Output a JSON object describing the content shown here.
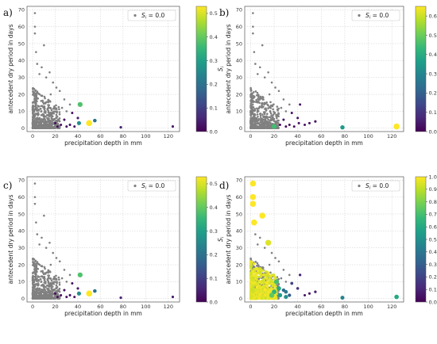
{
  "panel_letters": [
    "a)",
    "b)",
    "c)",
    "d)"
  ],
  "colors": {
    "zero_points": "#808080",
    "viridis": [
      "#440154",
      "#482878",
      "#3e4989",
      "#31688e",
      "#26828e",
      "#1f9e89",
      "#35b779",
      "#6ece58",
      "#b5de2b",
      "#fde725"
    ]
  },
  "chart_data": [
    {
      "type": "scatter",
      "panel": "a)",
      "xlabel": "precipitation depth in mm",
      "ylabel": "antecedent dry period in days",
      "xlim": [
        -5,
        130
      ],
      "ylim": [
        -2,
        72
      ],
      "xticks": [
        "0",
        "20",
        "40",
        "60",
        "80",
        "100",
        "120"
      ],
      "yticks": [
        "0",
        "10",
        "20",
        "30",
        "40",
        "50",
        "60",
        "70"
      ],
      "grid": true,
      "legend": {
        "placement": "top-right",
        "label": "S_i = 0.0",
        "label_main": "S",
        "label_sub": "i",
        "label_rest": " = 0.0"
      },
      "colorbar": {
        "label_main": "S",
        "label_sub": "i",
        "min": 0.0,
        "max": 0.53,
        "ticks": [
          "0.0",
          "0.1",
          "0.2",
          "0.3",
          "0.4",
          "0.5"
        ]
      },
      "nonzero_points": [
        {
          "x": 124,
          "y": 1,
          "s": 0.03
        },
        {
          "x": 78,
          "y": 0.5,
          "s": 0.05
        },
        {
          "x": 55,
          "y": 4.5,
          "s": 0.2
        },
        {
          "x": 50,
          "y": 3,
          "s": 0.53
        },
        {
          "x": 42,
          "y": 14,
          "s": 0.38
        },
        {
          "x": 41,
          "y": 3,
          "s": 0.26
        },
        {
          "x": 40,
          "y": 6,
          "s": 0.04
        },
        {
          "x": 35,
          "y": 9,
          "s": 0.02
        },
        {
          "x": 33,
          "y": 2,
          "s": 0.03
        },
        {
          "x": 30,
          "y": 1,
          "s": 0.02
        },
        {
          "x": 28,
          "y": 5,
          "s": 0.03
        },
        {
          "x": 25,
          "y": 2,
          "s": 0.02
        },
        {
          "x": 22,
          "y": 1,
          "s": 0.02
        },
        {
          "x": 20,
          "y": 3,
          "s": 0.02
        },
        {
          "x": 37,
          "y": 1,
          "s": 0.02
        }
      ]
    },
    {
      "type": "scatter",
      "panel": "b)",
      "xlabel": "precipitation depth in mm",
      "ylabel": "antecedent dry period in days",
      "xlim": [
        -5,
        130
      ],
      "ylim": [
        -2,
        72
      ],
      "xticks": [
        "0",
        "20",
        "40",
        "60",
        "80",
        "100",
        "120"
      ],
      "yticks": [
        "0",
        "10",
        "20",
        "30",
        "40",
        "50",
        "60",
        "70"
      ],
      "grid": true,
      "legend": {
        "placement": "top-right",
        "label": "S_i = 0.0",
        "label_main": "S",
        "label_sub": "i",
        "label_rest": " = 0.0"
      },
      "colorbar": {
        "label_main": "S",
        "label_sub": "i",
        "min": 0.0,
        "max": 0.65,
        "ticks": [
          "0.0",
          "0.1",
          "0.2",
          "0.3",
          "0.4",
          "0.5",
          "0.6"
        ]
      },
      "nonzero_points": [
        {
          "x": 124,
          "y": 1,
          "s": 0.65
        },
        {
          "x": 78,
          "y": 0.5,
          "s": 0.35
        },
        {
          "x": 55,
          "y": 4,
          "s": 0.05
        },
        {
          "x": 20,
          "y": 1,
          "s": 0.45
        },
        {
          "x": 42,
          "y": 14,
          "s": 0.02
        },
        {
          "x": 41,
          "y": 3,
          "s": 0.03
        },
        {
          "x": 40,
          "y": 6,
          "s": 0.03
        },
        {
          "x": 35,
          "y": 9,
          "s": 0.02
        },
        {
          "x": 33,
          "y": 2,
          "s": 0.03
        },
        {
          "x": 30,
          "y": 1,
          "s": 0.02
        },
        {
          "x": 28,
          "y": 5,
          "s": 0.03
        },
        {
          "x": 25,
          "y": 2,
          "s": 0.02
        },
        {
          "x": 46,
          "y": 2,
          "s": 0.02
        },
        {
          "x": 50,
          "y": 3,
          "s": 0.03
        },
        {
          "x": 37,
          "y": 1,
          "s": 0.02
        }
      ]
    },
    {
      "type": "scatter",
      "panel": "c)",
      "xlabel": "precipitation depth in mm",
      "ylabel": "antecedent dry period in days",
      "xlim": [
        -5,
        130
      ],
      "ylim": [
        -2,
        72
      ],
      "xticks": [
        "0",
        "20",
        "40",
        "60",
        "80",
        "100",
        "120"
      ],
      "yticks": [
        "0",
        "10",
        "20",
        "30",
        "40",
        "50",
        "60",
        "70"
      ],
      "grid": true,
      "legend": {
        "placement": "top-right",
        "label": "S_i = 0.0",
        "label_main": "S",
        "label_sub": "i",
        "label_rest": " = 0.0"
      },
      "colorbar": {
        "label_main": "S",
        "label_sub": "i",
        "min": 0.0,
        "max": 0.53,
        "ticks": [
          "0.0",
          "0.1",
          "0.2",
          "0.3",
          "0.4",
          "0.5"
        ]
      },
      "nonzero_points": [
        {
          "x": 124,
          "y": 1,
          "s": 0.03
        },
        {
          "x": 78,
          "y": 0.5,
          "s": 0.05
        },
        {
          "x": 55,
          "y": 4.5,
          "s": 0.2
        },
        {
          "x": 50,
          "y": 3,
          "s": 0.53
        },
        {
          "x": 42,
          "y": 14,
          "s": 0.38
        },
        {
          "x": 41,
          "y": 3,
          "s": 0.26
        },
        {
          "x": 40,
          "y": 6,
          "s": 0.04
        },
        {
          "x": 35,
          "y": 9,
          "s": 0.02
        },
        {
          "x": 33,
          "y": 2,
          "s": 0.03
        },
        {
          "x": 30,
          "y": 1,
          "s": 0.02
        },
        {
          "x": 28,
          "y": 5,
          "s": 0.03
        },
        {
          "x": 25,
          "y": 2,
          "s": 0.02
        },
        {
          "x": 22,
          "y": 1,
          "s": 0.02
        },
        {
          "x": 20,
          "y": 3,
          "s": 0.02
        },
        {
          "x": 37,
          "y": 1,
          "s": 0.02
        }
      ]
    },
    {
      "type": "scatter",
      "panel": "d)",
      "xlabel": "precipitation depth in mm",
      "ylabel": "antecedent dry period in days",
      "xlim": [
        -5,
        130
      ],
      "ylim": [
        -2,
        72
      ],
      "xticks": [
        "0",
        "20",
        "40",
        "60",
        "80",
        "100",
        "120"
      ],
      "yticks": [
        "0",
        "10",
        "20",
        "30",
        "40",
        "50",
        "60",
        "70"
      ],
      "grid": true,
      "legend": {
        "placement": "top-right",
        "label": "S_i = 0.0",
        "label_main": "S",
        "label_sub": "i",
        "label_rest": " = 0.0"
      },
      "colorbar": {
        "label_main": "S",
        "label_sub": "i",
        "min": 0.0,
        "max": 1.0,
        "ticks": [
          "0.0",
          "0.1",
          "0.2",
          "0.3",
          "0.4",
          "0.5",
          "0.6",
          "0.7",
          "0.8",
          "0.9",
          "1.0"
        ]
      },
      "nonzero_points": [
        {
          "x": 124,
          "y": 1,
          "s": 0.6
        },
        {
          "x": 78,
          "y": 0.5,
          "s": 0.45
        },
        {
          "x": 55,
          "y": 4,
          "s": 0.1
        },
        {
          "x": 42,
          "y": 14,
          "s": 0.1
        },
        {
          "x": 40,
          "y": 6,
          "s": 0.15
        },
        {
          "x": 35,
          "y": 9,
          "s": 0.2
        },
        {
          "x": 33,
          "y": 2,
          "s": 0.3
        },
        {
          "x": 30,
          "y": 1,
          "s": 0.5
        },
        {
          "x": 28,
          "y": 5,
          "s": 0.35
        },
        {
          "x": 25,
          "y": 2,
          "s": 0.55
        },
        {
          "x": 46,
          "y": 2,
          "s": 0.05
        },
        {
          "x": 50,
          "y": 3,
          "s": 0.05
        },
        {
          "x": 2,
          "y": 68,
          "s": 1.0
        },
        {
          "x": 2,
          "y": 60,
          "s": 1.0
        },
        {
          "x": 2,
          "y": 56,
          "s": 1.0
        },
        {
          "x": 10,
          "y": 49,
          "s": 1.0
        },
        {
          "x": 3,
          "y": 45,
          "s": 1.0
        },
        {
          "x": 15,
          "y": 33,
          "s": 0.95
        },
        {
          "x": 22,
          "y": 10,
          "s": 0.7
        },
        {
          "x": 20,
          "y": 4,
          "s": 0.65
        },
        {
          "x": 18,
          "y": 2,
          "s": 0.75
        },
        {
          "x": 30,
          "y": 4,
          "s": 0.4
        },
        {
          "x": 24,
          "y": 6,
          "s": 0.6
        }
      ]
    }
  ]
}
